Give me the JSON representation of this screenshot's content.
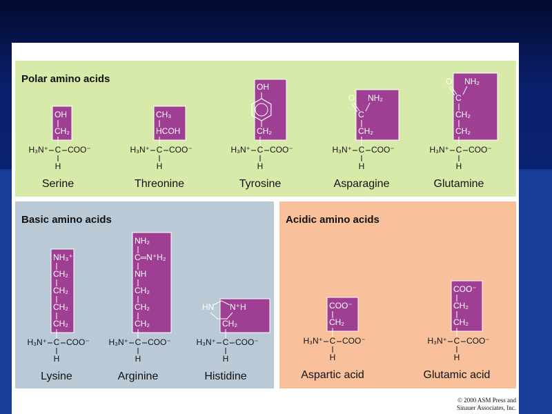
{
  "panels": [
    {
      "title": "Polar amino acids",
      "molecules": [
        {
          "name": "Serine",
          "side_chain": [
            [
              "OH"
            ],
            [
              "CH₂"
            ]
          ],
          "backbone": {
            "amine": "H₃N⁺",
            "alpha": "C",
            "carboxyl": "COO⁻",
            "h": "H"
          }
        },
        {
          "name": "Threonine",
          "side_chain": [
            [
              "CH₃"
            ],
            [
              "HCOH"
            ]
          ],
          "backbone": {
            "amine": "H₃N⁺",
            "alpha": "C",
            "carboxyl": "COO⁻",
            "h": "H"
          }
        },
        {
          "name": "Tyrosine",
          "side_chain": [
            [
              "OH"
            ],
            [
              "CH₂"
            ]
          ],
          "backbone": {
            "amine": "H₃N⁺",
            "alpha": "C",
            "carboxyl": "COO⁻",
            "h": "H"
          }
        },
        {
          "name": "Asparagine",
          "side_chain": [
            [
              "O",
              "NH₂"
            ],
            [
              "C"
            ],
            [
              "CH₂"
            ]
          ],
          "backbone": {
            "amine": "H₃N⁺",
            "alpha": "C",
            "carboxyl": "COO⁻",
            "h": "H"
          }
        },
        {
          "name": "Glutamine",
          "side_chain": [
            [
              "O",
              "NH₂"
            ],
            [
              "C"
            ],
            [
              "CH₂"
            ],
            [
              "CH₂"
            ]
          ],
          "backbone": {
            "amine": "H₃N⁺",
            "alpha": "C",
            "carboxyl": "COO⁻",
            "h": "H"
          }
        }
      ]
    },
    {
      "title": "Basic amino acids",
      "molecules": [
        {
          "name": "Lysine",
          "side_chain": [
            [
              "NH₃⁺"
            ],
            [
              "CH₂"
            ],
            [
              "CH₂"
            ],
            [
              "CH₂"
            ],
            [
              "CH₂"
            ]
          ],
          "backbone": {
            "amine": "H₃N⁺",
            "alpha": "C",
            "carboxyl": "COO⁻",
            "h": "H"
          }
        },
        {
          "name": "Arginine",
          "side_chain": [
            [
              "NH₂"
            ],
            [
              "C═N⁺H₂"
            ],
            [
              "NH"
            ],
            [
              "CH₂"
            ],
            [
              "CH₂"
            ],
            [
              "CH₂"
            ]
          ],
          "backbone": {
            "amine": "H₃N⁺",
            "alpha": "C",
            "carboxyl": "COO⁻",
            "h": "H"
          }
        },
        {
          "name": "Histidine",
          "side_chain": [
            [
              "HN",
              "N⁺H"
            ],
            [
              "CH₂"
            ]
          ],
          "backbone": {
            "amine": "H₃N⁺",
            "alpha": "C",
            "carboxyl": "COO⁻",
            "h": "H"
          }
        }
      ]
    },
    {
      "title": "Acidic amino acids",
      "molecules": [
        {
          "name": "Aspartic acid",
          "side_chain": [
            [
              "COO⁻"
            ],
            [
              "CH₂"
            ]
          ],
          "backbone": {
            "amine": "H₃N⁺",
            "alpha": "C",
            "carboxyl": "COO⁻",
            "h": "H"
          }
        },
        {
          "name": "Glutamic acid",
          "side_chain": [
            [
              "COO⁻"
            ],
            [
              "CH₂"
            ],
            [
              "CH₂"
            ]
          ],
          "backbone": {
            "amine": "H₃N⁺",
            "alpha": "C",
            "carboxyl": "COO⁻",
            "h": "H"
          }
        }
      ]
    }
  ],
  "credit": [
    "© 2000 ASM Press and",
    "Sinauer Associates, Inc."
  ]
}
